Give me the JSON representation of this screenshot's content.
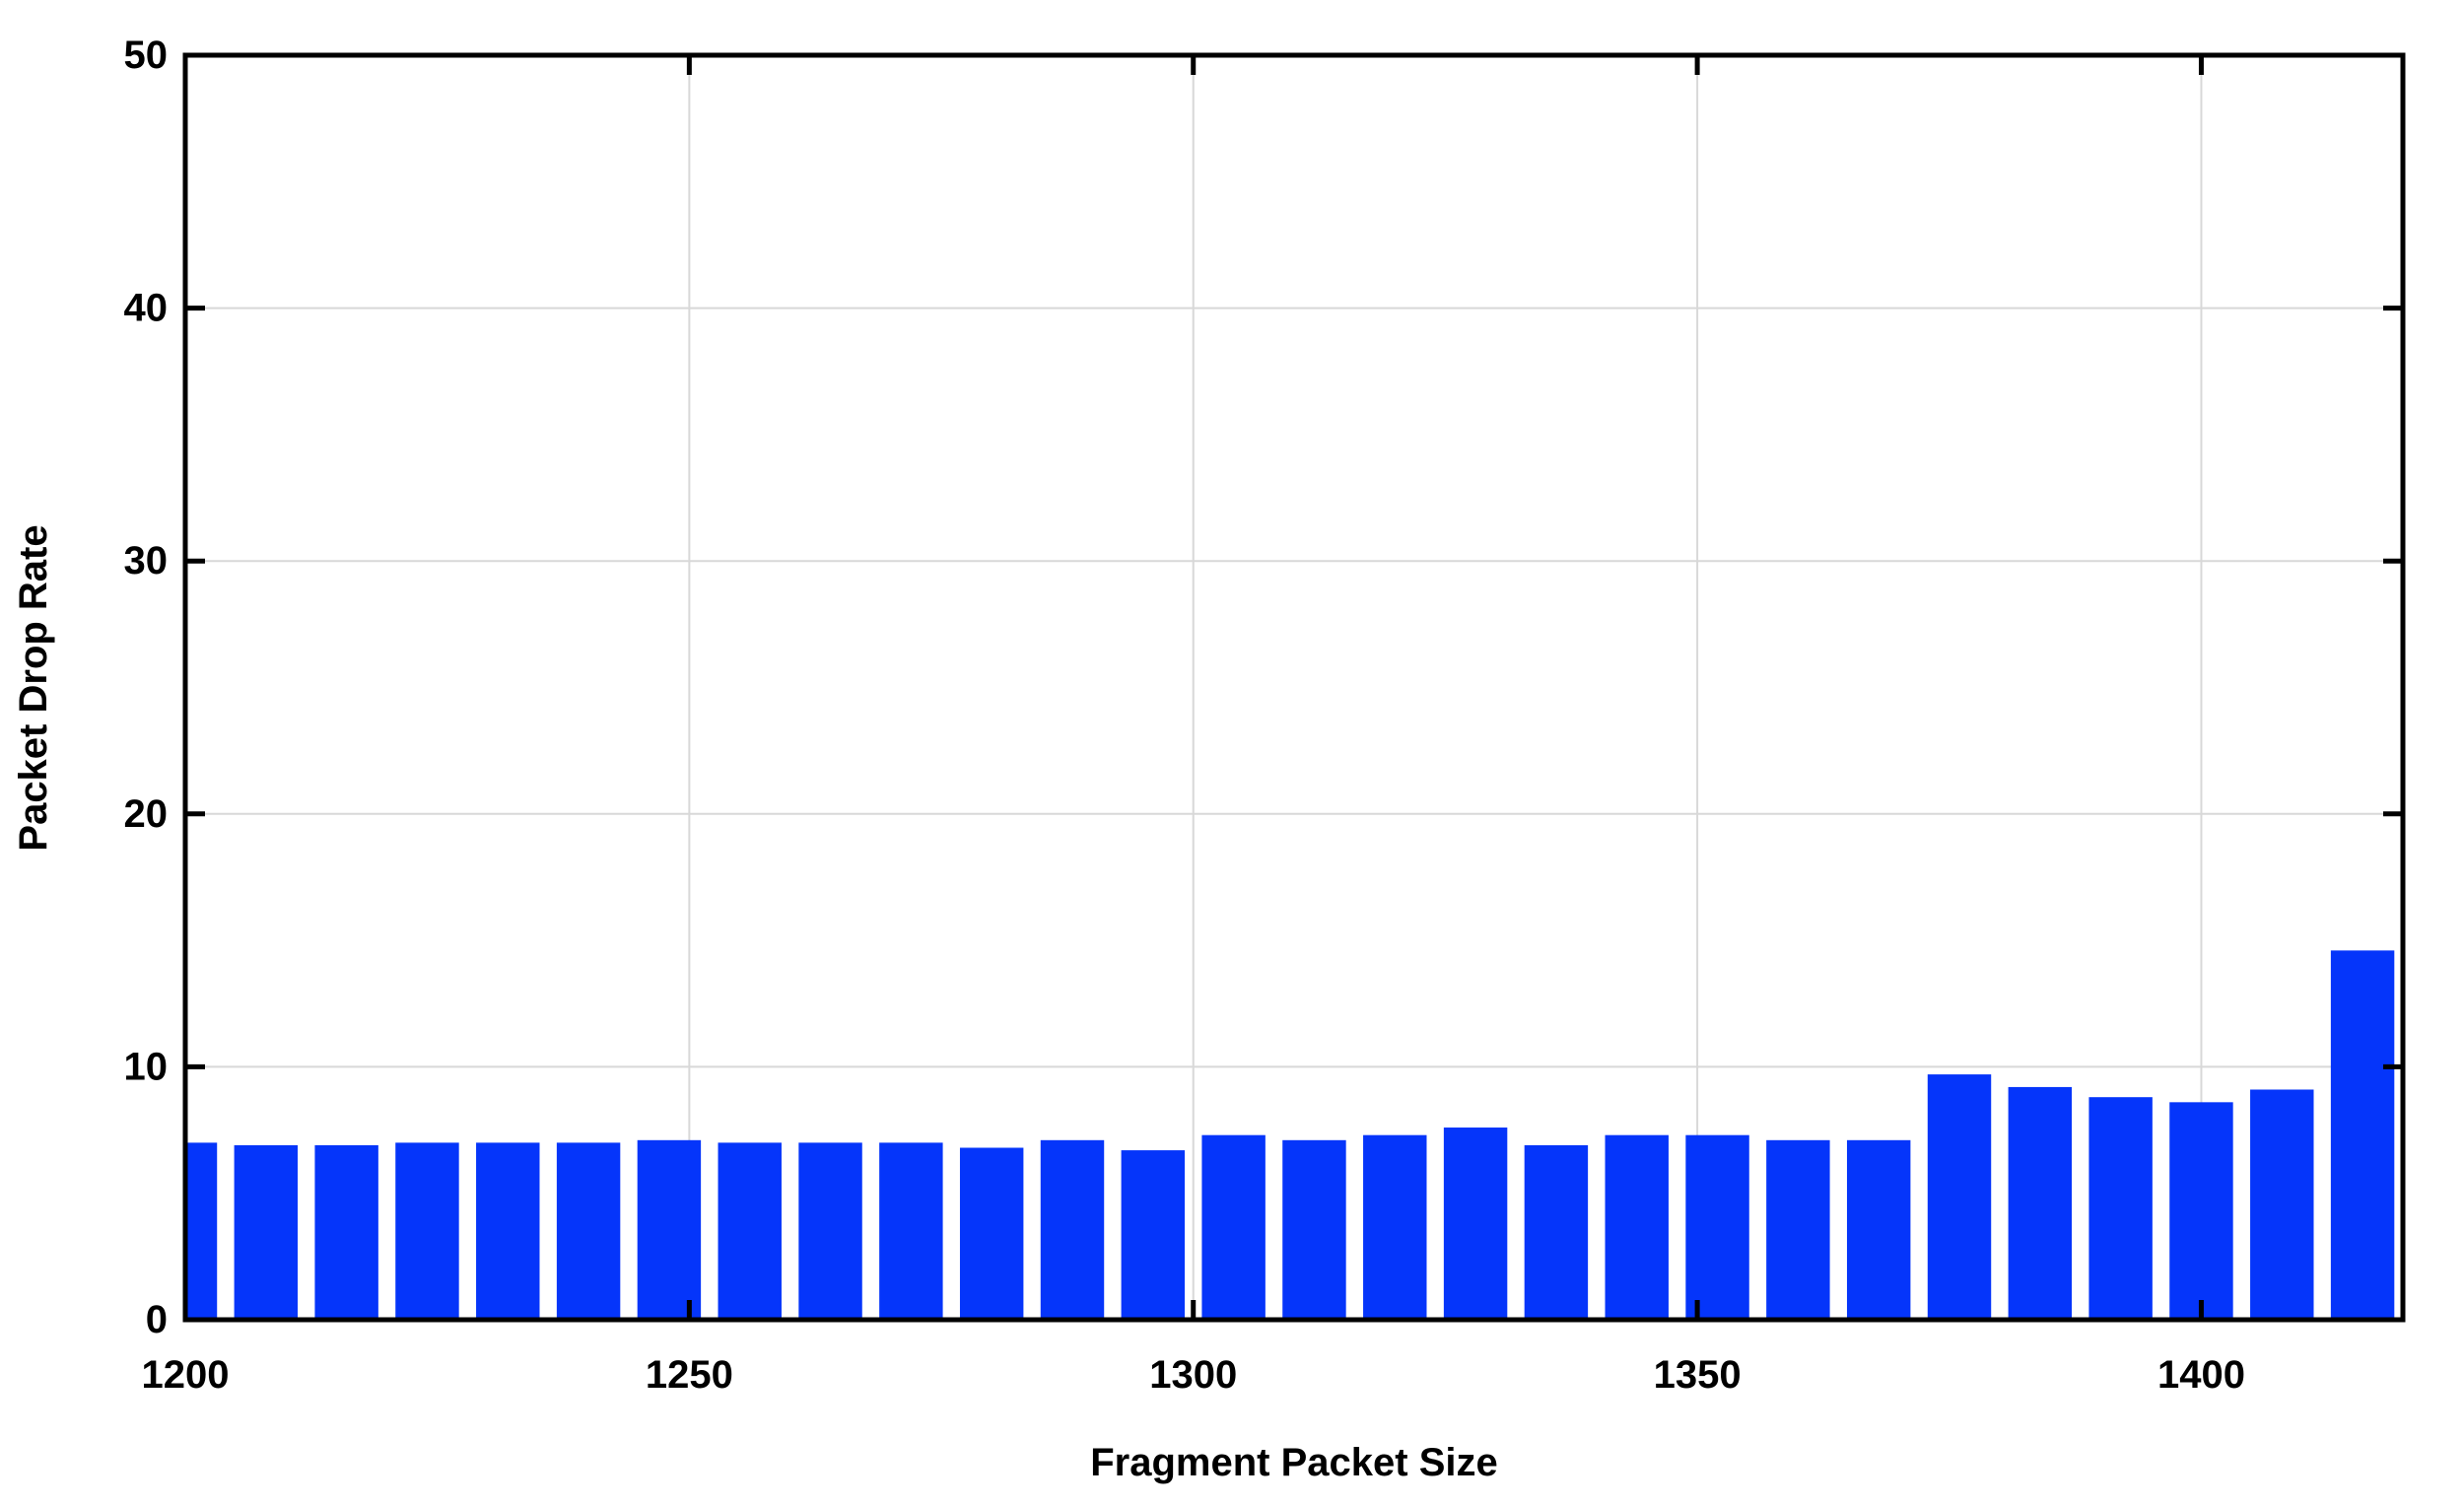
{
  "chart_data": {
    "type": "bar",
    "title": "",
    "xlabel": "Fragment Packet Size",
    "ylabel": "Packet Drop Rate",
    "x": [
      1200,
      1208,
      1216,
      1224,
      1232,
      1240,
      1248,
      1256,
      1264,
      1272,
      1280,
      1288,
      1296,
      1304,
      1312,
      1320,
      1328,
      1336,
      1344,
      1352,
      1360,
      1368,
      1376,
      1384,
      1392,
      1400,
      1408,
      1416
    ],
    "values": [
      7.0,
      6.9,
      6.9,
      7.0,
      7.0,
      7.0,
      7.1,
      7.0,
      7.0,
      7.0,
      6.8,
      7.1,
      6.7,
      7.3,
      7.1,
      7.3,
      7.6,
      6.9,
      7.3,
      7.3,
      7.1,
      7.1,
      9.7,
      9.2,
      8.8,
      8.6,
      9.1,
      14.6
    ],
    "xlim": [
      1200,
      1420
    ],
    "ylim": [
      0,
      50
    ],
    "xticks": [
      1200,
      1250,
      1300,
      1350,
      1400
    ],
    "yticks": [
      0,
      10,
      20,
      30,
      40,
      50
    ],
    "bar_step": 8,
    "bar_width_units": 6.3,
    "grid": true,
    "legend": null,
    "colors": {
      "bar": "#0535fa",
      "grid": "#d8d8d8",
      "frame": "#000000",
      "text": "#000000",
      "background": "#ffffff"
    }
  }
}
